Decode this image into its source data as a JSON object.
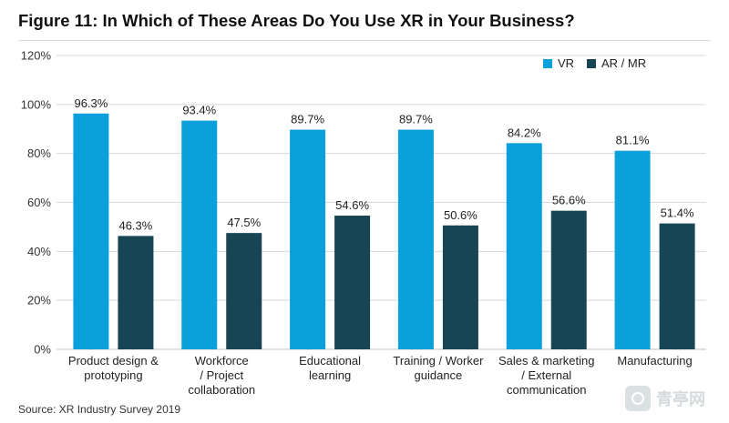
{
  "colors": {
    "vr": "#0aa0dc",
    "armr": "#174554",
    "grid": "#d9d9d9",
    "axis_text": "#333333"
  },
  "chart_data": {
    "type": "bar",
    "title": "Figure 11: In Which of These Areas Do You Use XR in Your Business?",
    "xlabel": "",
    "ylabel": "",
    "ylim": [
      0,
      120
    ],
    "yticks": [
      0,
      20,
      40,
      60,
      80,
      100,
      120
    ],
    "ytick_labels": [
      "0%",
      "20%",
      "40%",
      "60%",
      "80%",
      "100%",
      "120%"
    ],
    "categories": [
      [
        "Product design &",
        "prototyping"
      ],
      [
        "Workforce",
        "/ Project",
        "collaboration"
      ],
      [
        "Educational",
        "learning"
      ],
      [
        "Training / Worker",
        "guidance"
      ],
      [
        "Sales & marketing",
        "/ External",
        "communication"
      ],
      [
        "Manufacturing"
      ]
    ],
    "series": [
      {
        "name": "VR",
        "values": [
          96.3,
          93.4,
          89.7,
          89.7,
          84.2,
          81.1
        ],
        "labels": [
          "96.3%",
          "93.4%",
          "89.7%",
          "89.7%",
          "84.2%",
          "81.1%"
        ]
      },
      {
        "name": "AR / MR",
        "values": [
          46.3,
          47.5,
          54.6,
          50.6,
          56.6,
          51.4
        ],
        "labels": [
          "46.3%",
          "47.5%",
          "54.6%",
          "50.6%",
          "56.6%",
          "51.4%"
        ]
      }
    ],
    "legend_position": "top-right",
    "grid": true,
    "source": "Source: XR Industry Survey 2019"
  },
  "watermark": {
    "text": "青亭网"
  }
}
